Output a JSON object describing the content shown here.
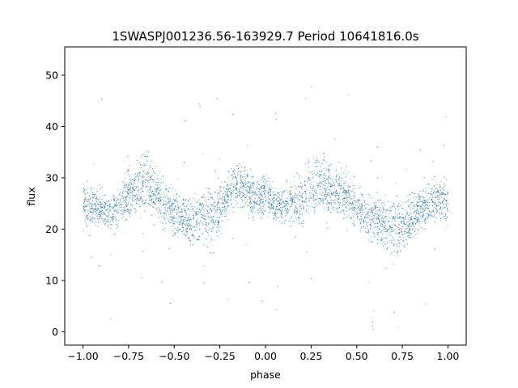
{
  "chart_data": {
    "type": "scatter",
    "title": "1SWASPJ001236.56-163929.7 Period 10641816.0s",
    "xlabel": "phase",
    "ylabel": "flux",
    "xlim": [
      -1.1,
      1.1
    ],
    "ylim": [
      -2.6,
      55.5
    ],
    "xticks": [
      -1.0,
      -0.75,
      -0.5,
      -0.25,
      0.0,
      0.25,
      0.5,
      0.75,
      1.0
    ],
    "xtick_labels": [
      "−1.00",
      "−0.75",
      "−0.50",
      "−0.25",
      "0.00",
      "0.25",
      "0.50",
      "0.75",
      "1.00"
    ],
    "yticks": [
      0,
      10,
      20,
      30,
      40,
      50
    ],
    "ytick_labels": [
      "0",
      "10",
      "20",
      "30",
      "40",
      "50"
    ],
    "grid": false,
    "series": [
      {
        "color": "#1f77b4",
        "marker": "point",
        "note_x": [
          -1.0,
          -0.95,
          -0.9,
          -0.85,
          -0.8,
          -0.75,
          -0.7,
          -0.65,
          -0.6,
          -0.55,
          -0.5,
          -0.45,
          -0.4,
          -0.35,
          -0.3,
          -0.25,
          -0.2,
          -0.15,
          -0.1,
          -0.05,
          0.0,
          0.05,
          0.1,
          0.15,
          0.2,
          0.25,
          0.3,
          0.35,
          0.4,
          0.45,
          0.5,
          0.55,
          0.6,
          0.65,
          0.7,
          0.75,
          0.8,
          0.85,
          0.9,
          0.95,
          1.0
        ],
        "y_center": [
          25,
          24,
          24,
          23,
          25,
          27,
          28,
          29,
          27,
          25,
          23,
          22,
          21,
          23,
          22,
          24,
          27,
          29,
          27,
          26,
          27,
          25,
          24,
          25,
          26,
          28,
          29,
          28,
          27,
          26,
          24,
          23,
          22,
          21,
          20,
          21,
          22,
          24,
          25,
          26,
          25
        ],
        "y_spread": [
          6,
          5,
          5,
          5,
          6,
          7,
          8,
          8,
          7,
          7,
          6,
          6,
          6,
          7,
          8,
          7,
          6,
          6,
          6,
          6,
          6,
          5,
          5,
          6,
          7,
          8,
          8,
          8,
          7,
          7,
          6,
          6,
          6,
          7,
          8,
          7,
          6,
          6,
          6,
          6,
          6
        ]
      }
    ]
  }
}
